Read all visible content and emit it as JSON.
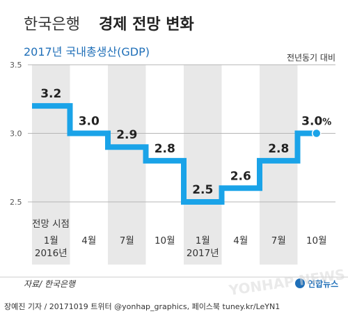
{
  "header": {
    "title_prefix": "한국은행",
    "title_main": "경제 전망 변화",
    "subtitle": "2017년 국내총생산(GDP)",
    "unit_note": "전년동기 대비"
  },
  "chart_data": {
    "type": "line",
    "step": true,
    "title": "한국은행 경제 전망 변화",
    "subtitle": "2017년 국내총생산(GDP)",
    "xlabel": "전망 시점",
    "ylabel": "",
    "categories": [
      "1월",
      "4월",
      "7월",
      "10월",
      "1월",
      "4월",
      "7월",
      "10월"
    ],
    "category_years": [
      "2016년",
      "",
      "",
      "",
      "2017년",
      "",
      "",
      ""
    ],
    "values": [
      3.2,
      3.0,
      2.9,
      2.8,
      2.5,
      2.6,
      2.8,
      3.0
    ],
    "value_labels": [
      "3.2",
      "3.0",
      "2.9",
      "2.8",
      "2.5",
      "2.6",
      "2.8",
      "3.0%"
    ],
    "yticks": [
      "2.5",
      "3.0",
      "3.5"
    ],
    "ylim": [
      2.5,
      3.5
    ],
    "colors": {
      "line": "#1aa3e8",
      "band": "#e8e8e8",
      "marker": "#1aa3e8"
    }
  },
  "footer": {
    "source": "자료/ 한국은행",
    "credit": "장예진 기자 / 20171019 트위터 @yonhap_graphics, 페이스북 tuney.kr/LeYN1",
    "logo_text": "연합뉴스",
    "watermark": "YONHAP NEWS"
  }
}
